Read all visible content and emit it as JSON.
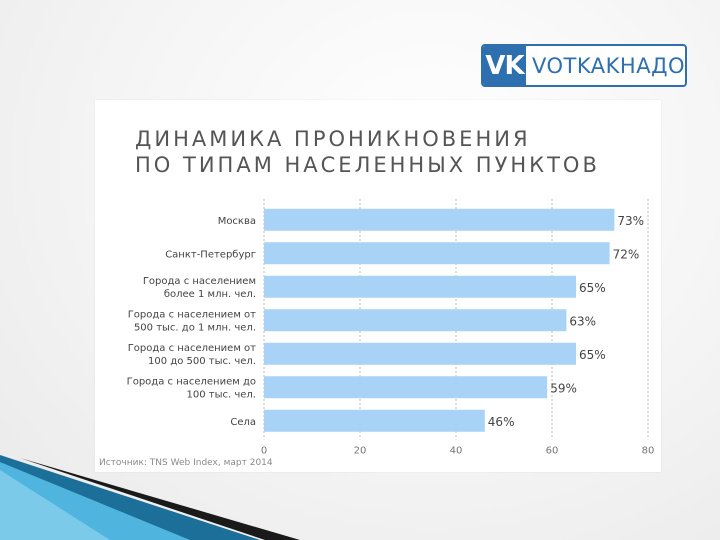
{
  "logo": {
    "mark": "VK",
    "name": "VOTKAKHAДO"
  },
  "colors": {
    "bar": "#a9d2f7",
    "accent": "#2e6fb0",
    "grid": "#bbbbbb"
  },
  "chart_data": {
    "type": "bar",
    "orientation": "horizontal",
    "title_lines": [
      "ДИНАМИКА ПРОНИКНОВЕНИЯ",
      "ПО ТИПАМ НАСЕЛЕННЫХ ПУНКТОВ"
    ],
    "categories": [
      [
        "Москва"
      ],
      [
        "Санкт-Петербург"
      ],
      [
        "Города с населением",
        "более 1 млн. чел."
      ],
      [
        "Города с населением от",
        "500 тыс. до 1 млн. чел."
      ],
      [
        "Города с населением от",
        "100 до 500 тыс. чел."
      ],
      [
        "Города с населением до",
        "100 тыс. чел."
      ],
      [
        "Села"
      ]
    ],
    "values": [
      73,
      72,
      65,
      63,
      65,
      59,
      46
    ],
    "value_labels": [
      "73%",
      "72%",
      "65%",
      "63%",
      "65%",
      "59%",
      "46%"
    ],
    "xlim": [
      0,
      80
    ],
    "xticks": [
      "0",
      "20",
      "40",
      "60",
      "80"
    ],
    "grid": true,
    "source": "Источник: TNS Web Index, март 2014"
  }
}
